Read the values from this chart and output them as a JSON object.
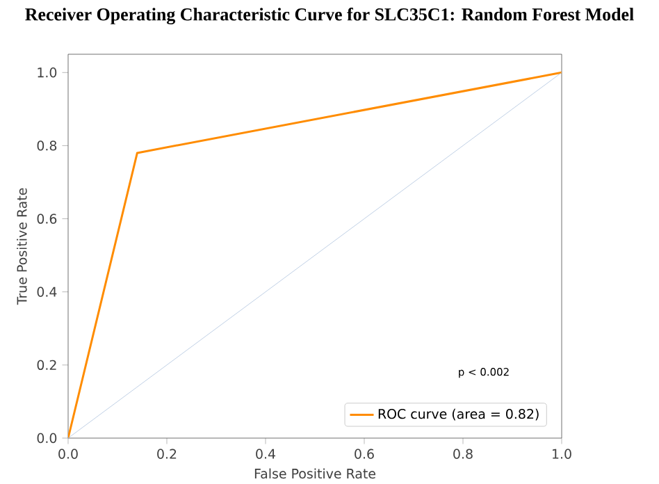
{
  "chart_data": {
    "type": "line",
    "title": "Receiver Operating Characteristic Curve for SLC35C1: Random Forest Model",
    "xlabel": "False Positive Rate",
    "ylabel": "True Positive Rate",
    "series": [
      {
        "name": "ROC curve (area = 0.82)",
        "color": "#ff8c00",
        "x": [
          0,
          0.14,
          1
        ],
        "values": [
          0,
          0.78,
          1
        ]
      },
      {
        "color": "#b0c4de",
        "x": [
          0,
          1
        ],
        "values": [
          0,
          1
        ]
      }
    ],
    "xlim": [
      0,
      1
    ],
    "ylim": [
      0,
      1.05
    ],
    "xticks": [
      {
        "value": 0,
        "label": "0.0"
      },
      0.2,
      0.4,
      0.6,
      0.8,
      {
        "value": 1,
        "label": "1.0"
      }
    ],
    "yticks": [
      {
        "value": 0,
        "label": "0.0"
      },
      0.2,
      0.4,
      0.6,
      0.8,
      {
        "value": 1,
        "label": "1.0"
      }
    ],
    "annotations": [
      "p < 0.002"
    ],
    "legend": "bottom right",
    "grid": false,
    "marker": "none",
    "line_style": "solid"
  }
}
